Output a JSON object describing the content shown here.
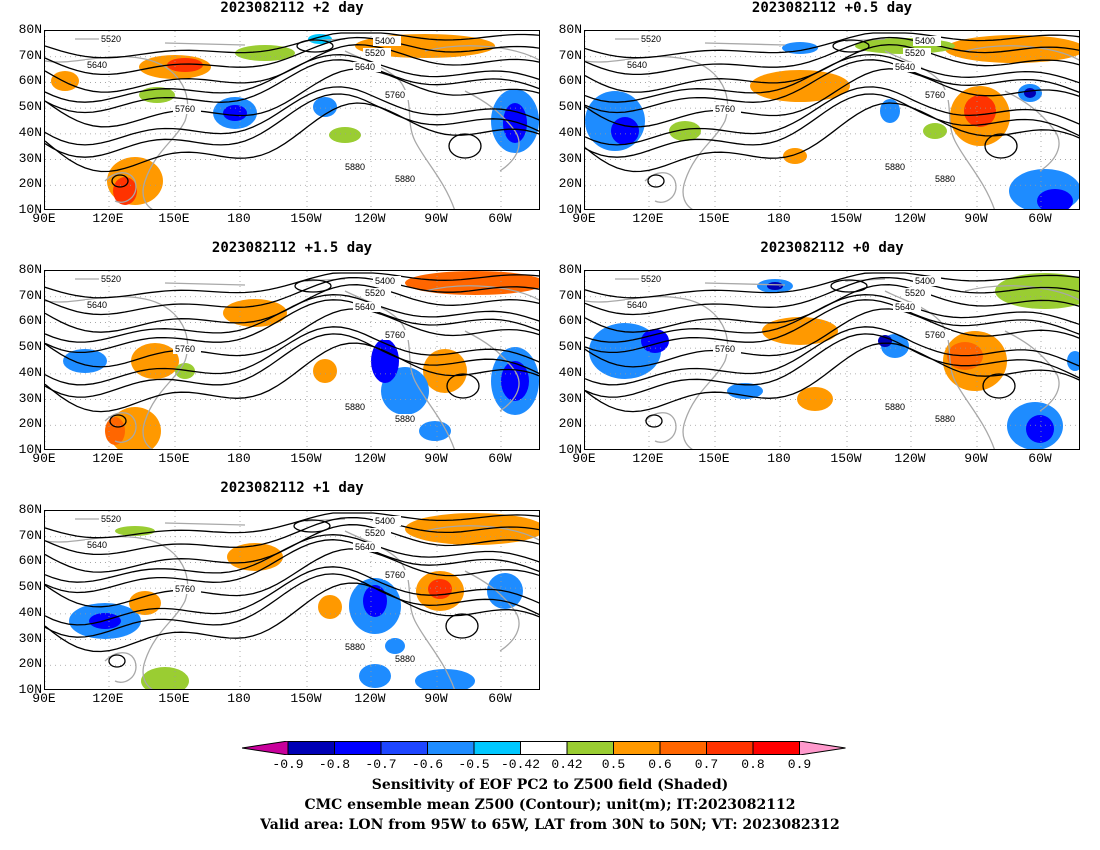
{
  "panels": [
    {
      "id": "p2",
      "title": "2023082112 +2 day",
      "left": 0
    },
    {
      "id": "p05",
      "title": "2023082112 +0.5 day"
    },
    {
      "id": "p15",
      "title": "2023082112 +1.5 day"
    },
    {
      "id": "p0",
      "title": "2023082112 +0 day"
    },
    {
      "id": "p1",
      "title": "2023082112 +1 day"
    }
  ],
  "lat_labels": [
    "80N",
    "70N",
    "60N",
    "50N",
    "40N",
    "30N",
    "20N",
    "10N"
  ],
  "lon_labels": [
    "90E",
    "120E",
    "150E",
    "180",
    "150W",
    "120W",
    "90W",
    "60W"
  ],
  "contour_labels": [
    "5400",
    "5520",
    "5640",
    "5760",
    "5880"
  ],
  "colorbar": {
    "ticks": [
      "-0.9",
      "-0.8",
      "-0.7",
      "-0.6",
      "-0.5",
      "-0.42",
      "0.42",
      "0.5",
      "0.6",
      "0.7",
      "0.8",
      "0.9"
    ],
    "colors": [
      "#c8009b",
      "#0000b4",
      "#0000ff",
      "#1e46ff",
      "#1e8cff",
      "#00c8ff",
      "#ffffff",
      "#9acd32",
      "#ff9900",
      "#ff6600",
      "#ff3300",
      "#ff0000",
      "#ff99cc"
    ]
  },
  "footer": {
    "line1": "Sensitivity of EOF PC2 to Z500 field (Shaded)",
    "line2": "CMC ensemble mean Z500 (Contour); unit(m); IT:2023082112",
    "line3": "Valid area: LON from 95W to 65W, LAT from 30N to 50N; VT: 2023082312"
  }
}
